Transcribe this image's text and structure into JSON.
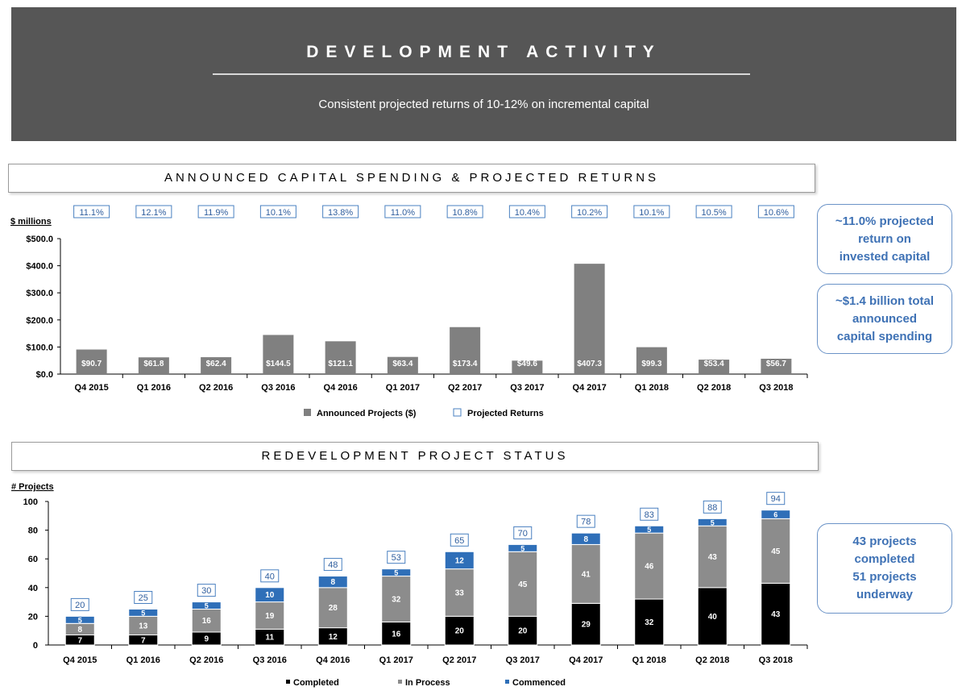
{
  "banner": {
    "title": "DEVELOPMENT ACTIVITY",
    "subtitle": "Consistent projected returns of 10-12% on incremental capital"
  },
  "section1": {
    "title": "ANNOUNCED CAPITAL SPENDING & PROJECTED RETURNS"
  },
  "section2": {
    "title": "REDEVELOPMENT PROJECT STATUS"
  },
  "callouts": {
    "returns": [
      "~11.0% projected",
      "return on",
      "invested capital"
    ],
    "spending": [
      "~$1.4 billion total",
      "announced",
      "capital spending"
    ],
    "projects": [
      "43 projects",
      "completed",
      "51 projects",
      "underway"
    ]
  },
  "colors": {
    "announced": "#808080",
    "completed": "#000000",
    "in_process": "#8c8c8c",
    "commenced": "#2f6fb8",
    "returns_box": "#4a80c0"
  },
  "chart_data": [
    {
      "type": "bar",
      "title": "ANNOUNCED CAPITAL SPENDING & PROJECTED RETURNS",
      "ylabel": "$ millions",
      "xlabel": "",
      "ylim": [
        0,
        500
      ],
      "yticks": [
        "$0.0",
        "$100.0",
        "$200.0",
        "$300.0",
        "$400.0",
        "$500.0"
      ],
      "categories": [
        "Q4 2015",
        "Q1 2016",
        "Q2 2016",
        "Q3 2016",
        "Q4 2016",
        "Q1 2017",
        "Q2 2017",
        "Q3 2017",
        "Q4 2017",
        "Q1 2018",
        "Q2 2018",
        "Q3 2018"
      ],
      "series": [
        {
          "name": "Announced Projects ($)",
          "values": [
            90.7,
            61.8,
            62.4,
            144.5,
            121.1,
            63.4,
            173.4,
            49.6,
            407.3,
            99.3,
            53.4,
            56.7
          ],
          "labels": [
            "$90.7",
            "$61.8",
            "$62.4",
            "$144.5",
            "$121.1",
            "$63.4",
            "$173.4",
            "$49.6",
            "$407.3",
            "$99.3",
            "$53.4",
            "$56.7"
          ]
        },
        {
          "name": "Projected Returns",
          "values": [
            "11.1%",
            "12.1%",
            "11.9%",
            "10.1%",
            "13.8%",
            "11.0%",
            "10.8%",
            "10.4%",
            "10.2%",
            "10.1%",
            "10.5%",
            "10.6%"
          ]
        }
      ],
      "legend": [
        "Announced Projects ($)",
        "Projected Returns"
      ],
      "legend_position": "bottom"
    },
    {
      "type": "bar",
      "stacked": true,
      "title": "REDEVELOPMENT PROJECT STATUS",
      "ylabel": "# Projects",
      "xlabel": "",
      "ylim": [
        0,
        100
      ],
      "yticks": [
        "0",
        "20",
        "40",
        "60",
        "80",
        "100"
      ],
      "categories": [
        "Q4 2015",
        "Q1 2016",
        "Q2 2016",
        "Q3 2016",
        "Q4 2016",
        "Q1 2017",
        "Q2 2017",
        "Q3 2017",
        "Q4 2017",
        "Q1 2018",
        "Q2 2018",
        "Q3 2018"
      ],
      "series": [
        {
          "name": "Completed",
          "values": [
            7,
            7,
            9,
            11,
            12,
            16,
            20,
            20,
            29,
            32,
            40,
            43
          ]
        },
        {
          "name": "In Process",
          "values": [
            8,
            13,
            16,
            19,
            28,
            32,
            33,
            45,
            41,
            46,
            43,
            45
          ]
        },
        {
          "name": "Commenced",
          "values": [
            5,
            5,
            5,
            10,
            8,
            5,
            12,
            5,
            8,
            5,
            5,
            6
          ]
        }
      ],
      "totals": [
        20,
        25,
        30,
        40,
        48,
        53,
        65,
        70,
        78,
        83,
        88,
        94
      ],
      "legend": [
        "Completed",
        "In Process",
        "Commenced"
      ],
      "legend_position": "bottom"
    }
  ]
}
